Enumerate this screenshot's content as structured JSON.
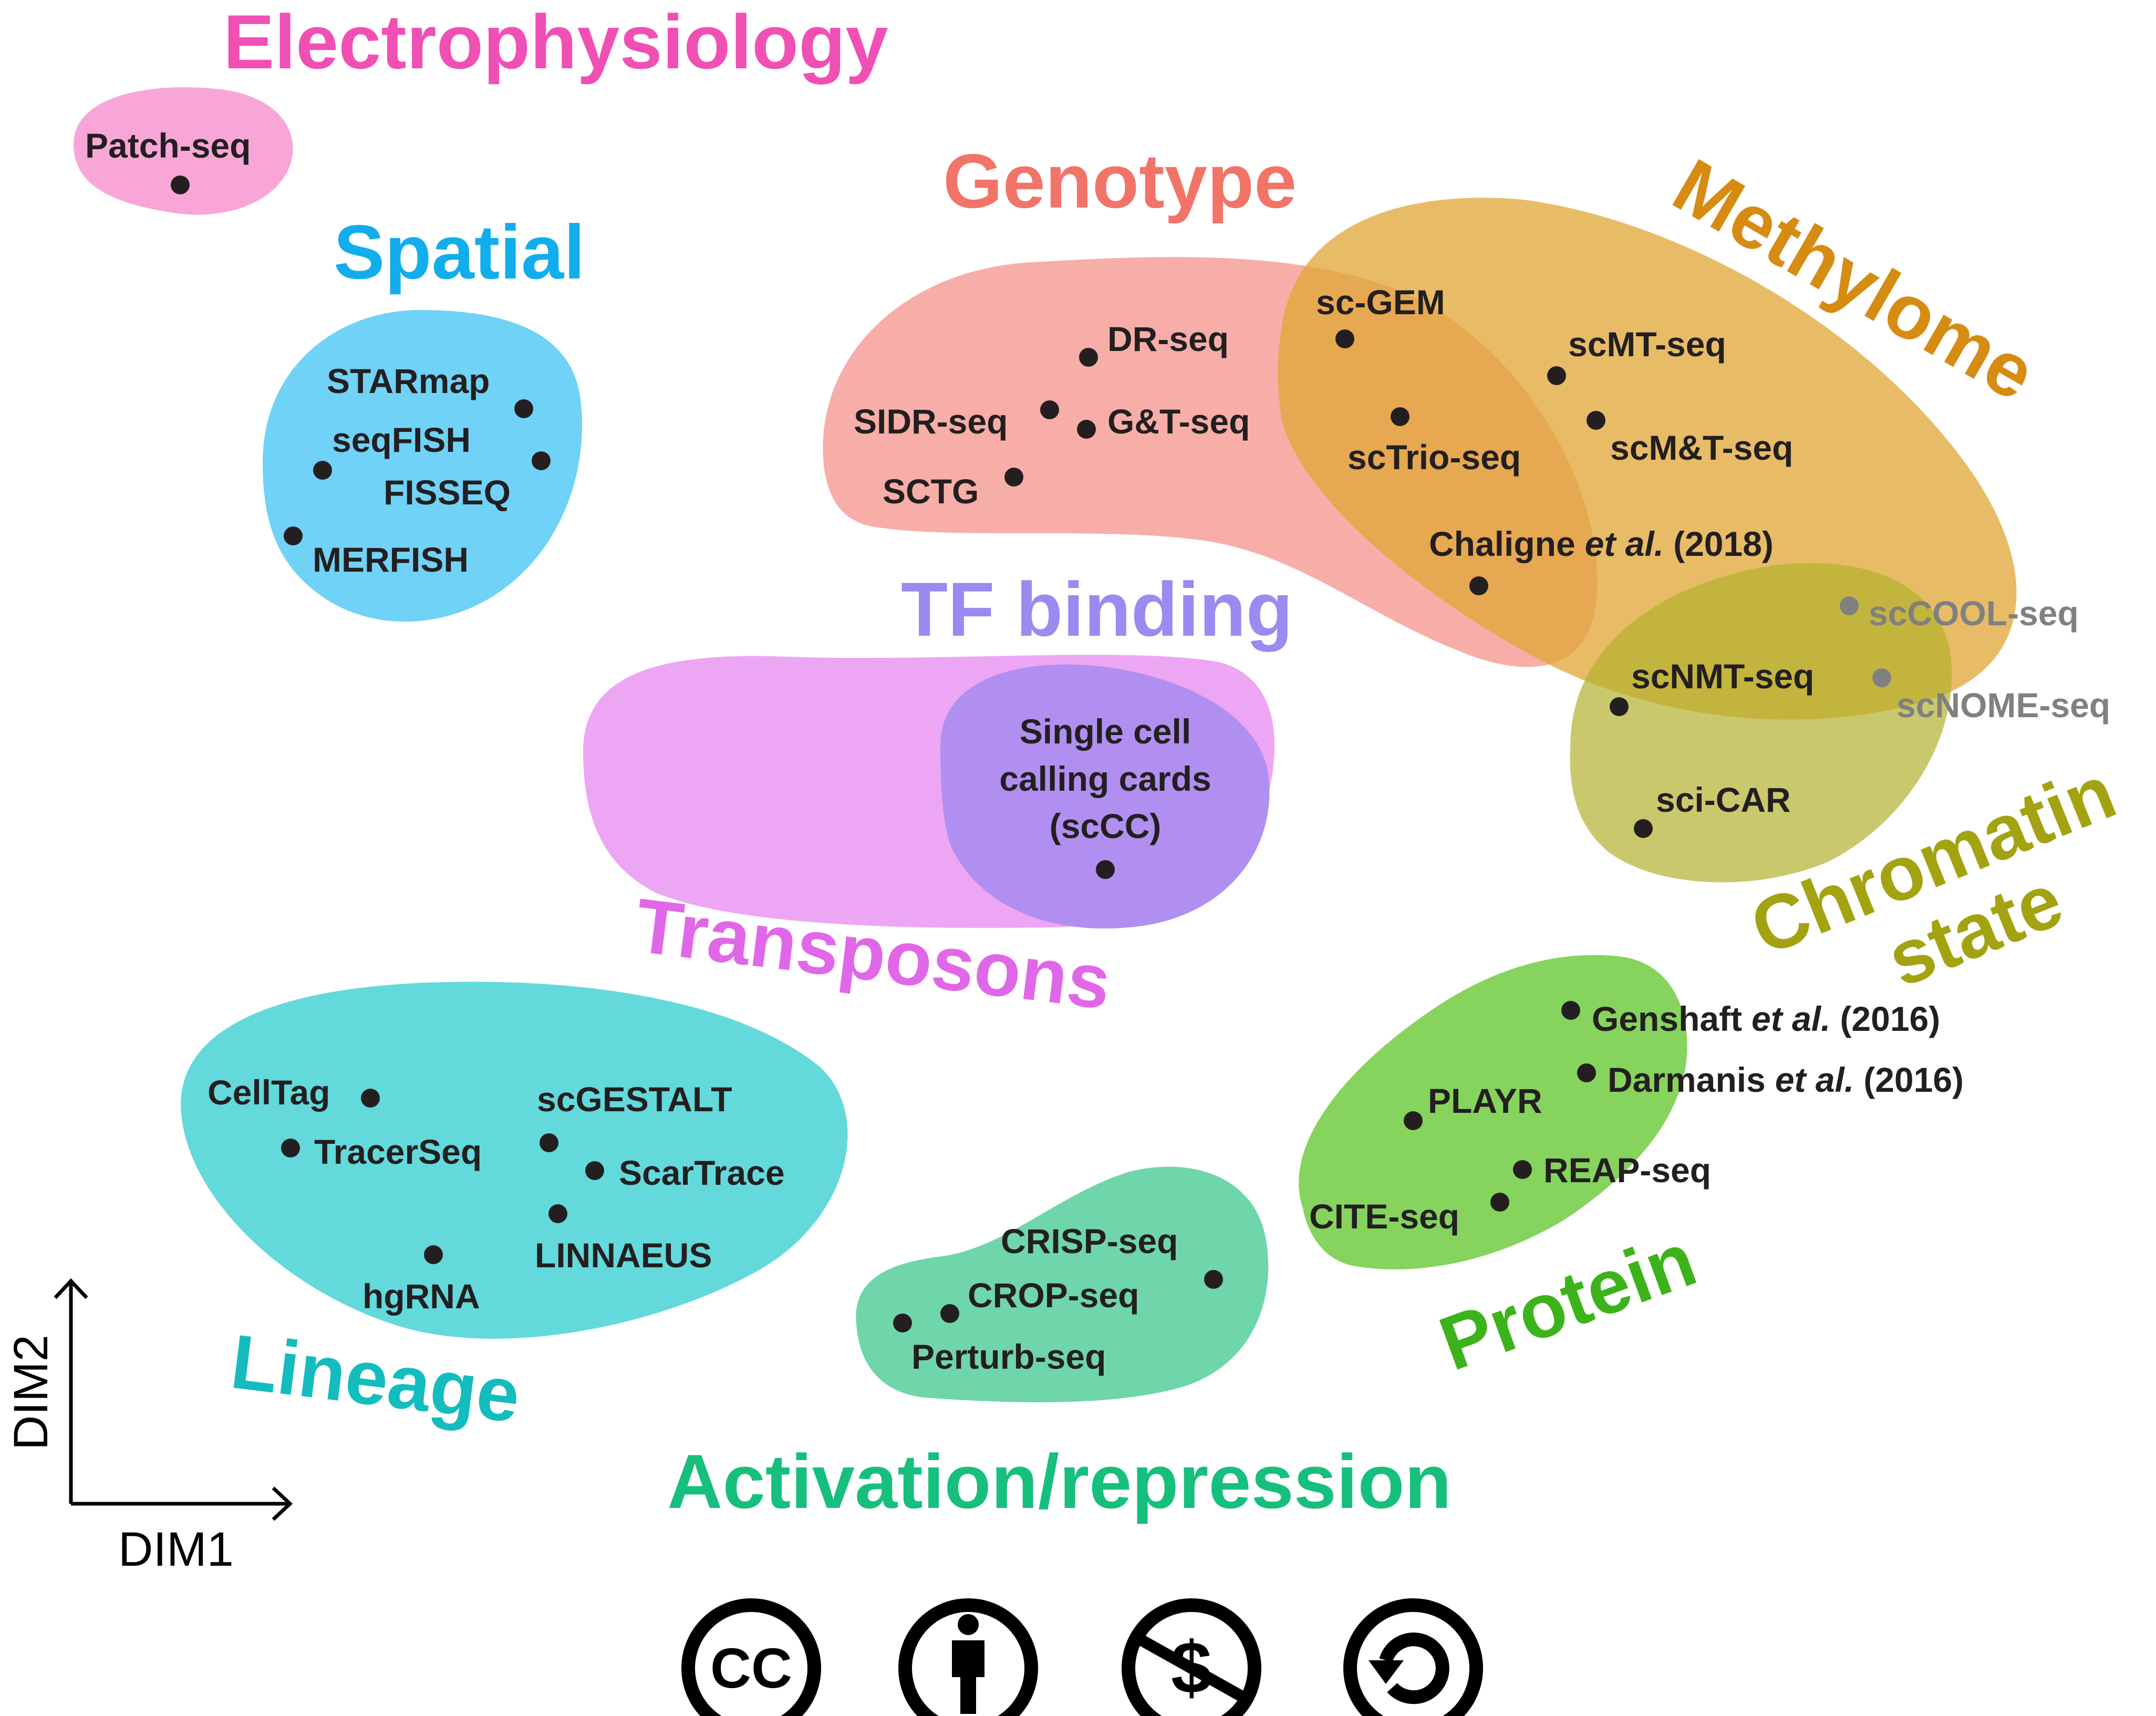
{
  "categories": {
    "electrophysiology": {
      "label": "Electrophysiology",
      "color": "#f050b4",
      "fill": "#f8a6d8"
    },
    "spatial": {
      "label": "Spatial",
      "color": "#12aeec",
      "fill": "#70d2f6"
    },
    "genotype": {
      "label": "Genotype",
      "color": "#f27468",
      "fill": "#f7aaa3"
    },
    "methylome": {
      "label": "Methylome",
      "color": "#d68c12",
      "fill": "#e5b34e"
    },
    "tf_binding": {
      "label": "TF binding",
      "color": "#9b8af0",
      "fill": "#b08ff0"
    },
    "transposons": {
      "label": "Transposons",
      "color": "#e068e8",
      "fill": "#eda6f3"
    },
    "chromatin_state": {
      "label_line1": "Chromatin",
      "label_line2": "state",
      "color": "#a3a312",
      "fill": "#c3c04a"
    },
    "lineage": {
      "label": "Lineage",
      "color": "#14bcbe",
      "fill": "#63d9dc"
    },
    "protein": {
      "label": "Protein",
      "color": "#3db31b",
      "fill": "#86d35d"
    },
    "activation_repression": {
      "label": "Activation/repression",
      "color": "#17bf7c",
      "fill": "#6ed6aa"
    }
  },
  "methods": {
    "patch_seq": "Patch-seq",
    "starmap": "STARmap",
    "seqfish": "seqFISH",
    "fisseq": "FISSEQ",
    "merfish": "MERFISH",
    "dr_seq": "DR-seq",
    "sidr_seq": "SIDR-seq",
    "gt_seq": "G&T-seq",
    "sctg": "SCTG",
    "sc_gem": "sc-GEM",
    "sctrio_seq": "scTrio-seq",
    "scmt_seq": "scMT-seq",
    "scmt_seq2": "scM&T-seq",
    "chaligne_name": "Chaligne",
    "chaligne_etal": "et al.",
    "chaligne_year": "(2018)",
    "sccool_seq": "scCOOL-seq",
    "scnmt_seq": "scNMT-seq",
    "scnome_seq": "scNOME-seq",
    "sci_car": "sci-CAR",
    "sccc_line1": "Single cell",
    "sccc_line2": "calling cards",
    "sccc_line3": "(scCC)",
    "genshaft_name": "Genshaft",
    "genshaft_etal": "et al.",
    "genshaft_year": "(2016)",
    "darmanis_name": "Darmanis",
    "darmanis_etal": "et al.",
    "darmanis_year": "(2016)",
    "playr": "PLAYR",
    "reap_seq": "REAP-seq",
    "cite_seq": "CITE-seq",
    "celltag": "CellTag",
    "tracerseq": "TracerSeq",
    "scgestalt": "scGESTALT",
    "scartrace": "ScarTrace",
    "linnaeus": "LINNAEUS",
    "hgrna": "hgRNA",
    "crisp_seq": "CRISP-seq",
    "crop_seq": "CROP-seq",
    "perturb_seq": "Perturb-seq"
  },
  "axes": {
    "x": "DIM1",
    "y": "DIM2"
  },
  "license_icons": [
    {
      "name": "cc",
      "text": "CC"
    },
    {
      "name": "by",
      "text": ""
    },
    {
      "name": "nc",
      "text": "$"
    },
    {
      "name": "sa",
      "text": ""
    }
  ],
  "dot_color": "#231f20",
  "grey_color": "#808080"
}
